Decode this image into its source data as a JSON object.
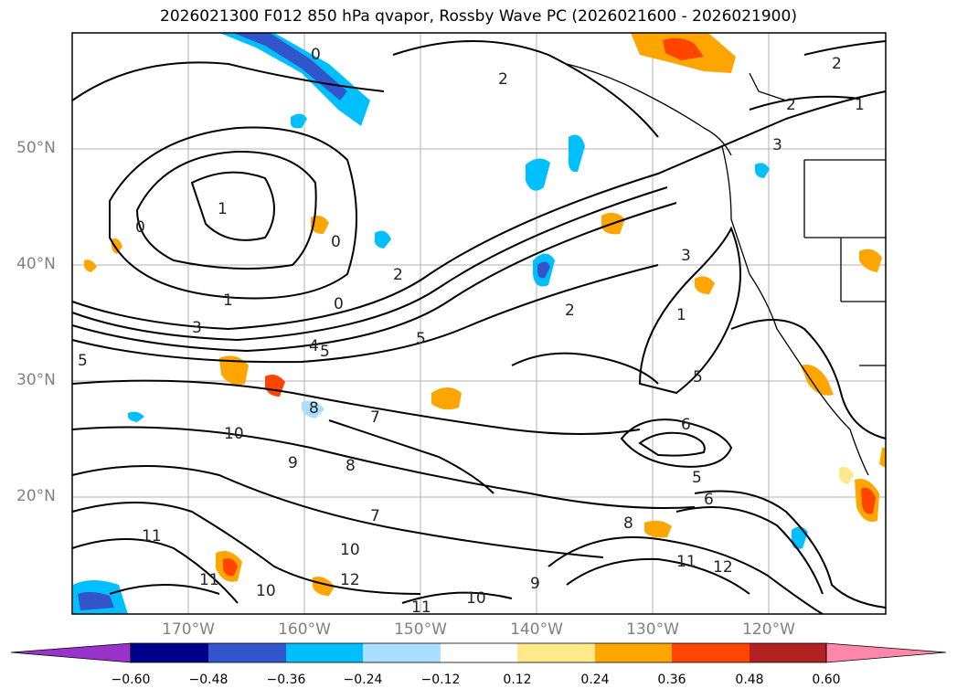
{
  "title": "2026021300 F012 850 hPa qvapor, Rossby Wave PC (2026021600 - 2026021900)",
  "map": {
    "lat_labels": [
      "50°N",
      "40°N",
      "30°N",
      "20°N"
    ],
    "lon_labels": [
      "170°W",
      "160°W",
      "150°W",
      "140°W",
      "130°W",
      "120°W"
    ],
    "contour_labels": [
      "1",
      "1",
      "1",
      "1",
      "2",
      "2",
      "2",
      "2",
      "2",
      "3",
      "3",
      "3",
      "4",
      "5",
      "5",
      "5",
      "5",
      "5",
      "6",
      "6",
      "7",
      "7",
      "8",
      "8",
      "8",
      "9",
      "9",
      "10",
      "10",
      "10",
      "10",
      "11",
      "11",
      "11",
      "11",
      "12",
      "12",
      "0",
      "0",
      "0",
      "0"
    ]
  },
  "colorbar": {
    "ticks": [
      "−0.60",
      "−0.48",
      "−0.36",
      "−0.24",
      "−0.12",
      "0.12",
      "0.24",
      "0.36",
      "0.48",
      "0.60"
    ],
    "colors": [
      "#9933cc",
      "#00008b",
      "#3355cc",
      "#00bfff",
      "#aadfff",
      "#ffffff",
      "#ffe98a",
      "#ffa500",
      "#ff4500",
      "#b22222",
      "#ff88aa"
    ]
  }
}
